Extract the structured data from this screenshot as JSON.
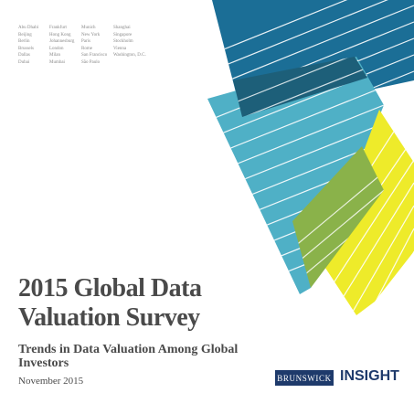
{
  "cities": [
    [
      "Abu Dhabi",
      "Beijing",
      "Berlin",
      "Brussels",
      "Dallas",
      "Dubai"
    ],
    [
      "Frankfurt",
      "Hong Kong",
      "Johannesburg",
      "London",
      "Milan",
      "Mumbai"
    ],
    [
      "Munich",
      "New York",
      "Paris",
      "Rome",
      "San Francisco",
      "São Paulo"
    ],
    [
      "Shanghai",
      "Singapore",
      "Stockholm",
      "Vienna",
      "Washington, D.C."
    ]
  ],
  "title_line1": "2015 Global Data",
  "title_line2": "Valuation Survey",
  "subtitle": "Trends in Data Valuation Among Global Investors",
  "date": "November 2015",
  "brand": "BRUNSWICK",
  "brand_product": "INSIGHT",
  "colors": {
    "dark_teal": "#1b6e96",
    "light_teal": "#4fb0c6",
    "yellow": "#eeeb2a",
    "overlap_teal_yellow": "#8ab24a",
    "overlap_dark": "#1d5f79",
    "brand_navy": "#1e3a6b"
  }
}
